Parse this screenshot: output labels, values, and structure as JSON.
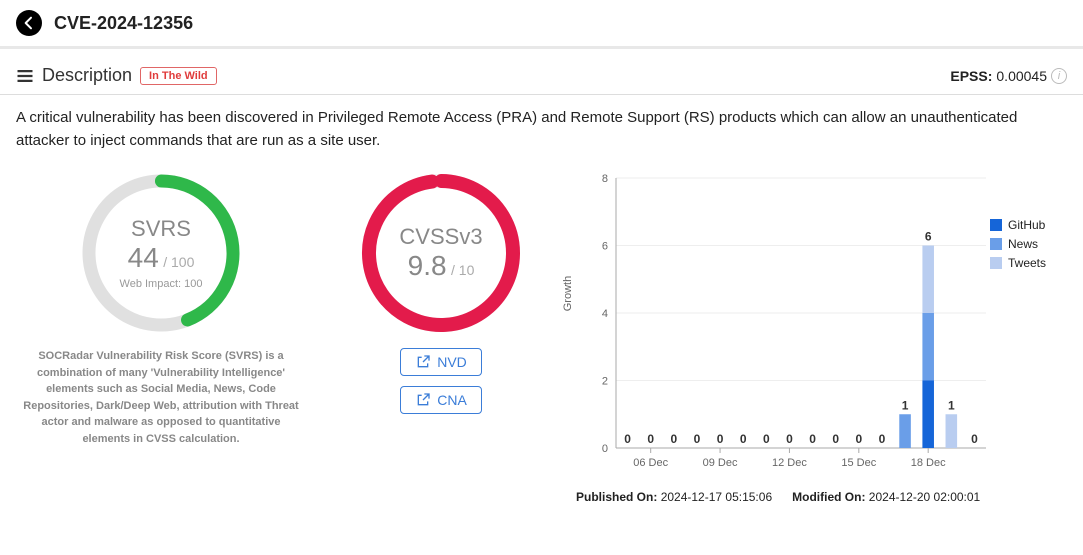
{
  "header": {
    "cve_id": "CVE-2024-12356"
  },
  "description": {
    "label": "Description",
    "badge": "In The Wild",
    "text": "A critical vulnerability has been discovered in Privileged Remote Access (PRA) and Remote Support (RS) products which can allow an unauthenticated attacker to inject commands that are run as a site user."
  },
  "epss": {
    "label": "EPSS:",
    "value": "0.00045"
  },
  "svrs": {
    "title": "SVRS",
    "value": "44",
    "max": "/ 100",
    "subtitle": "Web Impact: 100",
    "fraction": 0.44,
    "track_color": "#e0e0e0",
    "fill_color": "#2fb84a",
    "note": "SOCRadar Vulnerability Risk Score (SVRS) is a combination of many 'Vulnerability Intelligence' elements such as Social Media, News, Code Repositories, Dark/Deep Web, attribution with Threat actor and malware as opposed to quantitative elements in CVSS calculation."
  },
  "cvss": {
    "title": "CVSSv3",
    "value": "9.8",
    "max": "/ 10",
    "fraction": 0.98,
    "track_color": "#f0f0f0",
    "fill_color": "#e31b4b",
    "links": {
      "nvd": "NVD",
      "cna": "CNA"
    }
  },
  "chart": {
    "y_label": "Growth",
    "y_max": 8,
    "y_tick_step": 2,
    "series": [
      {
        "name": "GitHub",
        "color": "#1565d8"
      },
      {
        "name": "News",
        "color": "#6a9ee8"
      },
      {
        "name": "Tweets",
        "color": "#b9cdf0"
      }
    ],
    "x_tick_labels": [
      "06 Dec",
      "09 Dec",
      "12 Dec",
      "15 Dec",
      "18 Dec"
    ],
    "x_tick_indices": [
      1,
      4,
      7,
      10,
      13
    ],
    "bars": [
      {
        "total": 0,
        "stacks": []
      },
      {
        "total": 0,
        "stacks": []
      },
      {
        "total": 0,
        "stacks": []
      },
      {
        "total": 0,
        "stacks": []
      },
      {
        "total": 0,
        "stacks": []
      },
      {
        "total": 0,
        "stacks": []
      },
      {
        "total": 0,
        "stacks": []
      },
      {
        "total": 0,
        "stacks": []
      },
      {
        "total": 0,
        "stacks": []
      },
      {
        "total": 0,
        "stacks": []
      },
      {
        "total": 0,
        "stacks": []
      },
      {
        "total": 0,
        "stacks": []
      },
      {
        "total": 1,
        "stacks": [
          {
            "series": 1,
            "value": 1
          }
        ]
      },
      {
        "total": 6,
        "stacks": [
          {
            "series": 0,
            "value": 2
          },
          {
            "series": 1,
            "value": 2
          },
          {
            "series": 2,
            "value": 2
          }
        ]
      },
      {
        "total": 1,
        "stacks": [
          {
            "series": 2,
            "value": 1
          }
        ]
      },
      {
        "total": 0,
        "stacks": []
      }
    ]
  },
  "footer": {
    "published_label": "Published On:",
    "published_value": "2024-12-17 05:15:06",
    "modified_label": "Modified On:",
    "modified_value": "2024-12-20 02:00:01"
  }
}
